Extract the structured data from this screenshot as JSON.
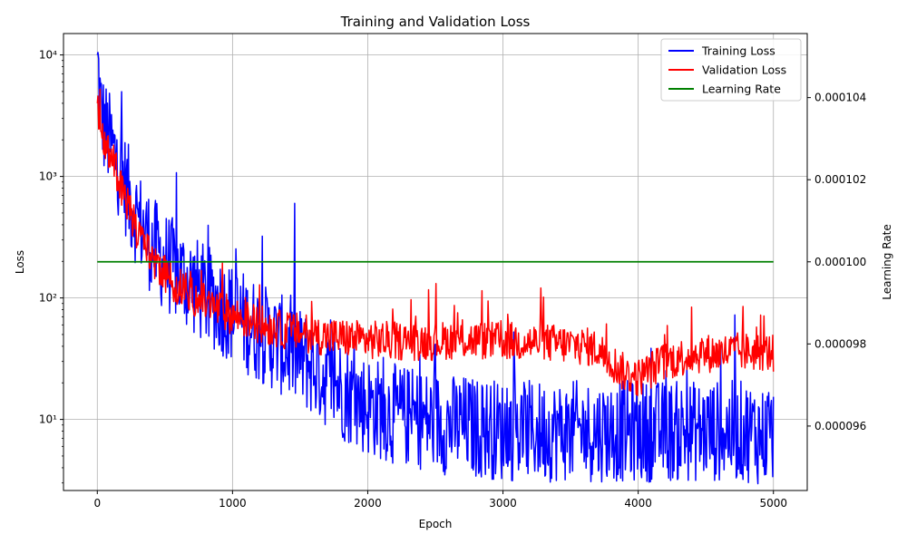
{
  "chart_data": {
    "type": "line",
    "title": "Training and Validation Loss",
    "xlabel": "Epoch",
    "ylabel": "Loss",
    "y2label": "Learning Rate",
    "xlim": [
      -250,
      5250
    ],
    "ylim": [
      2.6,
      15000
    ],
    "yscale": "log",
    "y2lim": [
      9.443e-05,
      0.00010556
    ],
    "grid": true,
    "legend": "top-right",
    "x_ticks": [
      0,
      1000,
      2000,
      3000,
      4000,
      5000
    ],
    "x_tick_labels": [
      "0",
      "1000",
      "2000",
      "3000",
      "4000",
      "5000"
    ],
    "y_ticks": [
      10,
      100,
      1000,
      10000
    ],
    "y_tick_labels": [
      "10¹",
      "10²",
      "10³",
      "10⁴"
    ],
    "y2_ticks": [
      9.6e-05,
      9.8e-05,
      0.0001,
      0.000102,
      0.000104
    ],
    "y2_tick_labels": [
      "0.000096",
      "0.000098",
      "0.000100",
      "0.000102",
      "0.000104"
    ],
    "series": [
      {
        "name": "Training Loss",
        "axis": "left",
        "color": "#0000ff",
        "x": [
          0,
          25,
          50,
          100,
          150,
          200,
          250,
          300,
          350,
          400,
          450,
          500,
          600,
          700,
          800,
          900,
          1000,
          1100,
          1200,
          1300,
          1400,
          1500,
          1600,
          1700,
          1800,
          1900,
          2000,
          2100,
          2200,
          2300,
          2400,
          2500,
          2600,
          2700,
          2800,
          2900,
          3000,
          3100,
          3200,
          3300,
          3400,
          3500,
          3600,
          3700,
          3800,
          3900,
          4000,
          4100,
          4200,
          4300,
          4400,
          4500,
          4600,
          4700,
          4800,
          4900,
          5000
        ],
        "values": [
          10000,
          3500,
          2600,
          1800,
          1300,
          900,
          600,
          450,
          350,
          280,
          230,
          200,
          160,
          130,
          105,
          90,
          75,
          62,
          52,
          45,
          38,
          32,
          27,
          22,
          18,
          15,
          13,
          12,
          11,
          10.5,
          10,
          9.5,
          9,
          9,
          8.5,
          8.5,
          8,
          8,
          8,
          8,
          8,
          8,
          8,
          8,
          8,
          8,
          8,
          8,
          8,
          8,
          8,
          8,
          8,
          8,
          8,
          7.5,
          7.5
        ]
      },
      {
        "name": "Validation Loss",
        "axis": "left",
        "color": "#ff0000",
        "x": [
          0,
          25,
          50,
          100,
          150,
          200,
          250,
          300,
          350,
          400,
          450,
          500,
          600,
          700,
          800,
          900,
          1000,
          1100,
          1200,
          1300,
          1400,
          1500,
          1600,
          1700,
          1800,
          1900,
          2000,
          2100,
          2200,
          2300,
          2400,
          2500,
          2600,
          2700,
          2800,
          2900,
          3000,
          3100,
          3200,
          3300,
          3400,
          3500,
          3600,
          3700,
          3800,
          3900,
          4000,
          4100,
          4200,
          4300,
          4400,
          4500,
          4600,
          4700,
          4800,
          4900,
          5000
        ],
        "values": [
          4000,
          2500,
          2000,
          1500,
          1000,
          700,
          480,
          350,
          270,
          220,
          180,
          155,
          125,
          105,
          90,
          80,
          72,
          66,
          61,
          57,
          54,
          52,
          50,
          48,
          47,
          46,
          45,
          45,
          44,
          44,
          44,
          44,
          45,
          45,
          45,
          44,
          44,
          44,
          43,
          43,
          42,
          41,
          40,
          38,
          30,
          24,
          22,
          26,
          30,
          32,
          34,
          35,
          35,
          36,
          36,
          36,
          35
        ]
      },
      {
        "name": "Learning Rate",
        "axis": "right",
        "color": "#008000",
        "x": [
          0,
          5000
        ],
        "values": [
          0.0001,
          0.0001
        ]
      }
    ]
  }
}
